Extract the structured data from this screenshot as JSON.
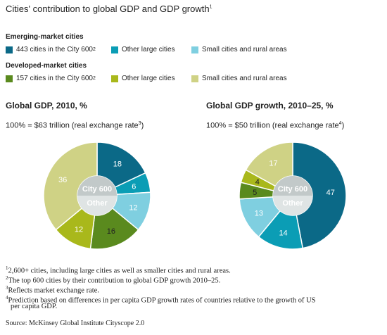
{
  "title": "Cities' contribution to global GDP and GDP growth",
  "title_sup": "1",
  "legend": {
    "emerging_heading": "Emerging-market cities",
    "developed_heading": "Developed-market cities",
    "items": [
      {
        "label": "443 cities in the City 600",
        "sup": "2",
        "color": "#0b6987"
      },
      {
        "label": "Other large cities",
        "sup": "",
        "color": "#0b9db5"
      },
      {
        "label": "Small cities and rural areas",
        "sup": "",
        "color": "#7fcfe0"
      },
      {
        "label": "157 cities in the City 600",
        "sup": "2",
        "color": "#5a8a1e"
      },
      {
        "label": "Other large cities",
        "sup": "",
        "color": "#a9b81b"
      },
      {
        "label": "Small cities and rural areas",
        "sup": "",
        "color": "#cfd285"
      }
    ]
  },
  "chart_data": [
    {
      "type": "pie",
      "title": "Global GDP, 2010, %",
      "subtitle": "100% = $63 trillion (real exchange rate",
      "subtitle_sup": "3",
      "subtitle_end": ")",
      "categories": [
        "Emerging City 600",
        "Emerging other large",
        "Emerging small/rural",
        "Developed small/rural",
        "Developed other large",
        "Developed City 600"
      ],
      "values": [
        18,
        6,
        12,
        16,
        12,
        36
      ],
      "center_labels": {
        "top": "City 600",
        "bottom": "Other"
      }
    },
    {
      "type": "pie",
      "title": "Global GDP growth, 2010–25, %",
      "subtitle": "100% = $50 trillion (real exchange rate",
      "subtitle_sup": "4",
      "subtitle_end": ")",
      "categories": [
        "Emerging City 600",
        "Emerging other large",
        "Emerging small/rural",
        "Developed small/rural",
        "Developed other large",
        "Developed City 600"
      ],
      "values": [
        47,
        14,
        13,
        5,
        4,
        17
      ],
      "center_labels": {
        "top": "City 600",
        "bottom": "Other"
      }
    }
  ],
  "colors": {
    "center_city600": "#c2c9c9",
    "center_other": "#dfe4e4"
  },
  "footnotes": [
    {
      "sup": "1",
      "text": "2,600+ cities, including large cities as well as smaller cities and rural areas."
    },
    {
      "sup": "2",
      "text": "The top 600 cities by their contribution to global GDP growth 2010–25."
    },
    {
      "sup": "3",
      "text": "Reflects market exchange rate."
    },
    {
      "sup": "4",
      "text": "Prediction based on differences in per capita GDP growth rates of countries relative to the growth of US"
    },
    {
      "sup": "",
      "text": "per capita GDP."
    }
  ],
  "source": "Source: McKinsey Global Institute Cityscope 2.0"
}
